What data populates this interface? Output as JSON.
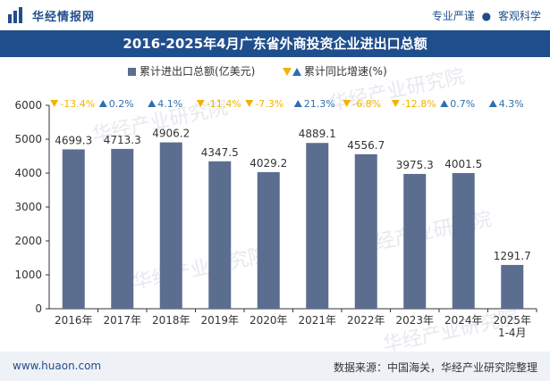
{
  "header": {
    "site_name": "华经情报网",
    "tagline_left": "专业严谨",
    "tagline_sep": "●",
    "tagline_right": "客观科学",
    "logo_icon": "bar-chart-logo-icon"
  },
  "footer": {
    "url": "www.huaon.com",
    "source": "数据来源：中国海关，华经产业研究院整理"
  },
  "watermark": "华经产业研究院",
  "colors": {
    "brand": "#1f4e8c",
    "bar": "#5b6e8f",
    "up": "#2f6fae",
    "down": "#f0b400",
    "axis": "#333333",
    "label": "#333333"
  },
  "chart_data": {
    "type": "bar",
    "title": "2016-2025年4月广东省外商投资企业进出口总额",
    "categories": [
      "2016年",
      "2017年",
      "2018年",
      "2019年",
      "2020年",
      "2021年",
      "2022年",
      "2023年",
      "2024年",
      "2025年\n1-4月"
    ],
    "series": [
      {
        "name": "累计进出口总额(亿美元)",
        "values": [
          4699.3,
          4713.3,
          4906.2,
          4347.5,
          4029.2,
          4889.1,
          4556.7,
          3975.3,
          4001.5,
          1291.7
        ]
      }
    ],
    "growth": {
      "name": "累计同比增速(%)",
      "labels": [
        "-13.4%",
        "0.2%",
        "4.1%",
        "-11.4%",
        "-7.3%",
        "21.3%",
        "-6.8%",
        "-12.8%",
        "0.7%",
        "4.3%"
      ],
      "direction": [
        "down",
        "up",
        "up",
        "down",
        "down",
        "up",
        "down",
        "down",
        "up",
        "up"
      ]
    },
    "ylim": [
      0,
      6000
    ],
    "yticks": [
      0,
      1000,
      2000,
      3000,
      4000,
      5000,
      6000
    ],
    "legend_position": "top-center",
    "grid": false
  }
}
